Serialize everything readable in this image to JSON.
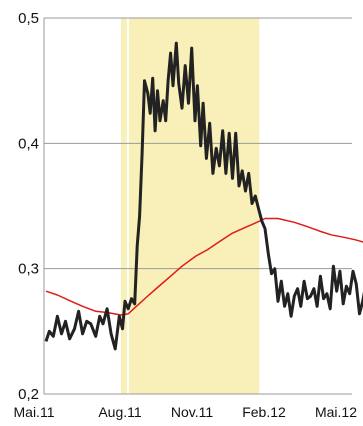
{
  "chart_data": {
    "type": "line",
    "title": "",
    "xlabel": "",
    "ylabel": "",
    "ylim": [
      0.2,
      0.5
    ],
    "yticks": [
      "0,2",
      "0,3",
      "0,4",
      "0,5"
    ],
    "xticks": [
      "Mai.11",
      "Aug.11",
      "Nov.11",
      "Feb.12",
      "Mai.12"
    ],
    "grid": "horizontal",
    "x_range": [
      "2011-05-01",
      "2012-05-31"
    ],
    "highlight_band": {
      "start": "2011-08-01",
      "end": "2012-01-18",
      "color": "#f8f0b8"
    },
    "series": [
      {
        "color": "#222222",
        "x": [
          "2011-05-01",
          "2011-05-05",
          "2011-05-10",
          "2011-05-15",
          "2011-05-20",
          "2011-05-25",
          "2011-05-30",
          "2011-06-05",
          "2011-06-10",
          "2011-06-15",
          "2011-06-20",
          "2011-06-25",
          "2011-07-01",
          "2011-07-06",
          "2011-07-10",
          "2011-07-15",
          "2011-07-20",
          "2011-07-25",
          "2011-07-30",
          "2011-08-03",
          "2011-08-06",
          "2011-08-10",
          "2011-08-14",
          "2011-08-18",
          "2011-08-21",
          "2011-08-24",
          "2011-08-27",
          "2011-08-30",
          "2011-09-03",
          "2011-09-06",
          "2011-09-09",
          "2011-09-12",
          "2011-09-15",
          "2011-09-18",
          "2011-09-22",
          "2011-09-25",
          "2011-09-28",
          "2011-10-01",
          "2011-10-04",
          "2011-10-08",
          "2011-10-11",
          "2011-10-15",
          "2011-10-19",
          "2011-10-23",
          "2011-10-27",
          "2011-10-31",
          "2011-11-03",
          "2011-11-07",
          "2011-11-10",
          "2011-11-14",
          "2011-11-18",
          "2011-11-22",
          "2011-11-26",
          "2011-11-30",
          "2011-12-04",
          "2011-12-08",
          "2011-12-12",
          "2011-12-16",
          "2011-12-20",
          "2011-12-24",
          "2011-12-28",
          "2012-01-01",
          "2012-01-05",
          "2012-01-09",
          "2012-01-13",
          "2012-01-17",
          "2012-01-21",
          "2012-01-25",
          "2012-01-29",
          "2012-02-02",
          "2012-02-06",
          "2012-02-10",
          "2012-02-14",
          "2012-02-18",
          "2012-02-22",
          "2012-02-26",
          "2012-03-01",
          "2012-03-05",
          "2012-03-09",
          "2012-03-13",
          "2012-03-17",
          "2012-03-21",
          "2012-03-25",
          "2012-03-29",
          "2012-04-02",
          "2012-04-06",
          "2012-04-10",
          "2012-04-14",
          "2012-04-18",
          "2012-04-22",
          "2012-04-26",
          "2012-04-30",
          "2012-05-04",
          "2012-05-08",
          "2012-05-12",
          "2012-05-16",
          "2012-05-20",
          "2012-05-24",
          "2012-05-28",
          "2012-05-31"
        ],
        "values": [
          0.242,
          0.25,
          0.246,
          0.262,
          0.248,
          0.258,
          0.244,
          0.252,
          0.266,
          0.248,
          0.258,
          0.256,
          0.246,
          0.262,
          0.256,
          0.268,
          0.248,
          0.236,
          0.262,
          0.252,
          0.274,
          0.268,
          0.276,
          0.272,
          0.318,
          0.342,
          0.392,
          0.45,
          0.44,
          0.424,
          0.452,
          0.41,
          0.442,
          0.418,
          0.434,
          0.418,
          0.45,
          0.472,
          0.446,
          0.48,
          0.448,
          0.428,
          0.462,
          0.432,
          0.476,
          0.418,
          0.446,
          0.398,
          0.432,
          0.388,
          0.416,
          0.376,
          0.396,
          0.382,
          0.41,
          0.376,
          0.408,
          0.372,
          0.408,
          0.366,
          0.378,
          0.362,
          0.376,
          0.352,
          0.358,
          0.348,
          0.338,
          0.332,
          0.312,
          0.296,
          0.3,
          0.274,
          0.29,
          0.27,
          0.28,
          0.262,
          0.278,
          0.284,
          0.27,
          0.29,
          0.276,
          0.278,
          0.284,
          0.27,
          0.294,
          0.276,
          0.28,
          0.268,
          0.302,
          0.282,
          0.298,
          0.272,
          0.286,
          0.28,
          0.298,
          0.288,
          0.264,
          0.274,
          0.288,
          0.29
        ]
      },
      {
        "color": "#dd1c1a",
        "x": [
          "2011-05-01",
          "2011-05-15",
          "2011-06-01",
          "2011-06-15",
          "2011-07-01",
          "2011-07-15",
          "2011-08-01",
          "2011-08-10",
          "2011-08-20",
          "2011-09-01",
          "2011-09-15",
          "2011-10-01",
          "2011-10-15",
          "2011-11-01",
          "2011-11-15",
          "2011-12-01",
          "2011-12-15",
          "2012-01-01",
          "2012-01-15",
          "2012-01-25",
          "2012-02-10",
          "2012-03-01",
          "2012-03-15",
          "2012-04-01",
          "2012-04-15",
          "2012-05-01",
          "2012-05-15",
          "2012-05-31"
        ],
        "values": [
          0.282,
          0.279,
          0.274,
          0.27,
          0.266,
          0.265,
          0.263,
          0.264,
          0.27,
          0.277,
          0.285,
          0.294,
          0.302,
          0.31,
          0.315,
          0.322,
          0.328,
          0.333,
          0.337,
          0.34,
          0.34,
          0.337,
          0.334,
          0.33,
          0.327,
          0.325,
          0.323,
          0.32
        ]
      }
    ]
  }
}
